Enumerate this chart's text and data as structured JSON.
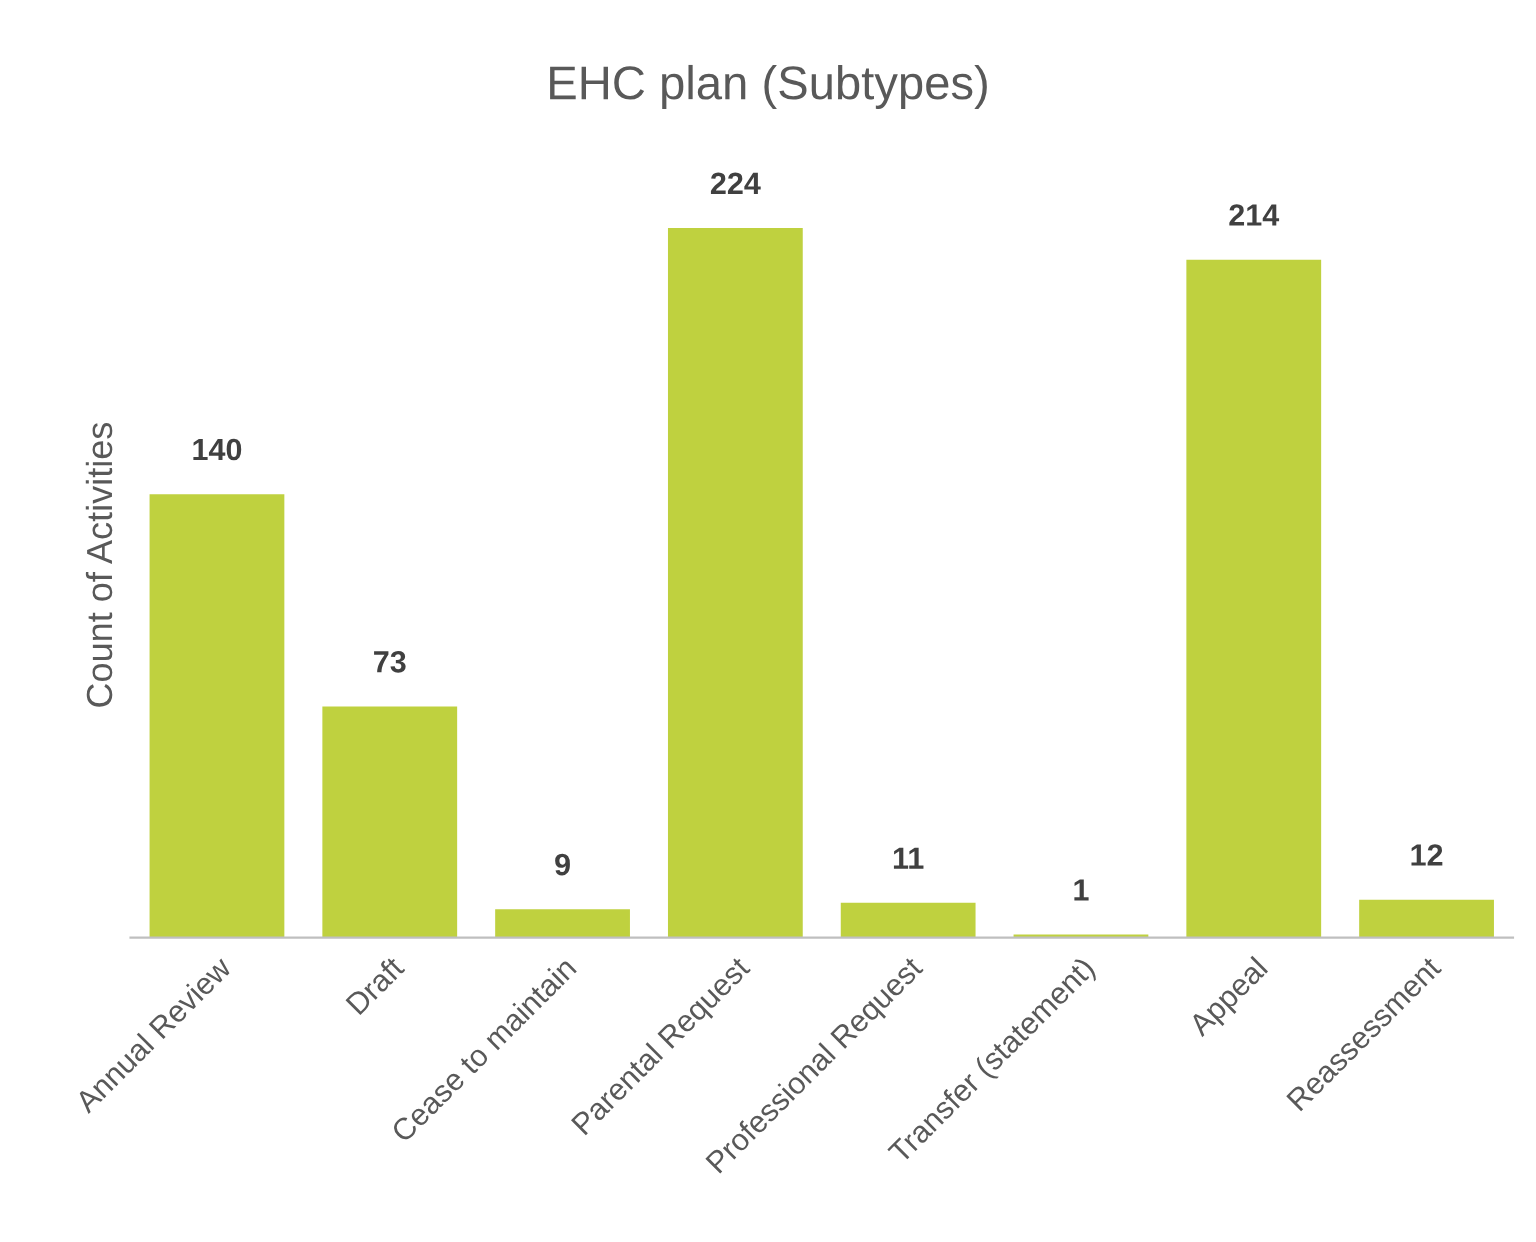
{
  "chart_data": {
    "type": "bar",
    "title": "EHC plan (Subtypes)",
    "ylabel": "Count of Activities",
    "categories": [
      "Annual Review",
      "Draft",
      "Cease to maintain",
      "Parental Request",
      "Professional Request",
      "Transfer (statement)",
      "Appeal",
      "Reassessment"
    ],
    "values": [
      140,
      73,
      9,
      224,
      11,
      1,
      214,
      12
    ],
    "color": "#bfd13f",
    "data_labels": true,
    "tick_labels": "x",
    "grid": false
  }
}
